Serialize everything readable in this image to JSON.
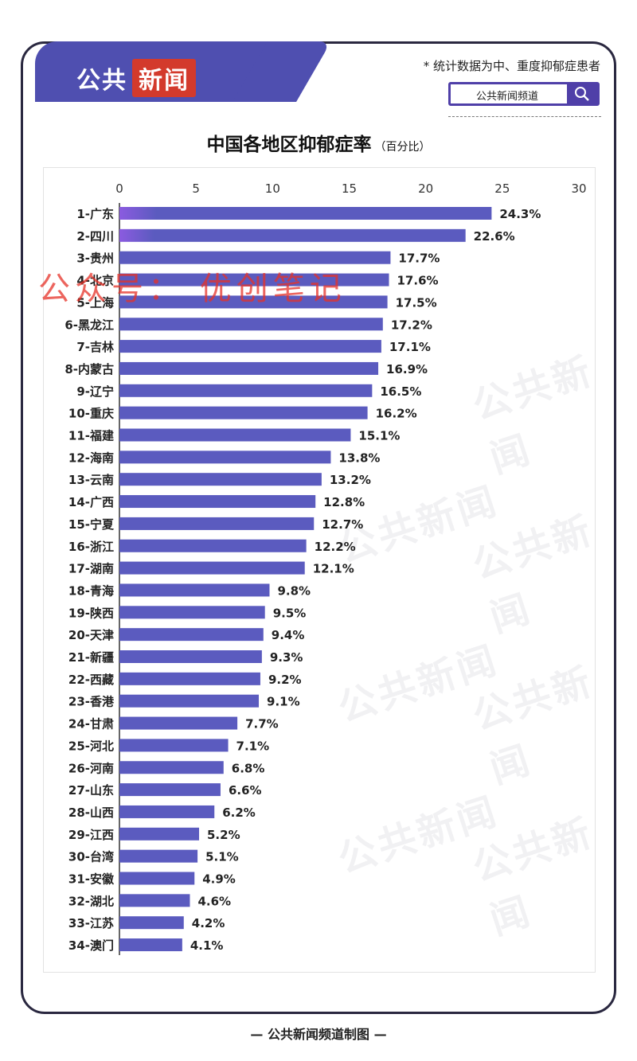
{
  "header": {
    "logo_part1": "公共",
    "logo_part2": "新闻",
    "note": "* 统计数据为中、重度抑郁症患者",
    "search_text": "公共新闻频道"
  },
  "watermark_text": "公共新闻",
  "overlay_watermark": "公众号： 优创笔记",
  "footer": "— 公共新闻频道制图 —",
  "colors": {
    "bar": "#5b5bbf",
    "bar_top": "#8b5be0",
    "accent": "#4f3fa8",
    "logo_red": "#d33a2c"
  },
  "chart_data": {
    "type": "bar",
    "orientation": "horizontal",
    "title": "中国各地区抑郁症率",
    "unit": "（百分比）",
    "xlim": [
      0,
      30
    ],
    "xticks": [
      "0",
      "5",
      "10",
      "15",
      "20",
      "25",
      "30"
    ],
    "categories": [
      "1-广东",
      "2-四川",
      "3-贵州",
      "4-北京",
      "5-上海",
      "6-黑龙江",
      "7-吉林",
      "8-内蒙古",
      "9-辽宁",
      "10-重庆",
      "11-福建",
      "12-海南",
      "13-云南",
      "14-广西",
      "15-宁夏",
      "16-浙江",
      "17-湖南",
      "18-青海",
      "19-陕西",
      "20-天津",
      "21-新疆",
      "22-西藏",
      "23-香港",
      "24-甘肃",
      "25-河北",
      "26-河南",
      "27-山东",
      "28-山西",
      "29-江西",
      "30-台湾",
      "31-安徽",
      "32-湖北",
      "33-江苏",
      "34-澳门"
    ],
    "values": [
      24.3,
      22.6,
      17.7,
      17.6,
      17.5,
      17.2,
      17.1,
      16.9,
      16.5,
      16.2,
      15.1,
      13.8,
      13.2,
      12.8,
      12.7,
      12.2,
      12.1,
      9.8,
      9.5,
      9.4,
      9.3,
      9.2,
      9.1,
      7.7,
      7.1,
      6.8,
      6.6,
      6.2,
      5.2,
      5.1,
      4.9,
      4.6,
      4.2,
      4.1
    ],
    "labels": [
      "24.3%",
      "22.6%",
      "17.7%",
      "17.6%",
      "17.5%",
      "17.2%",
      "17.1%",
      "16.9%",
      "16.5%",
      "16.2%",
      "15.1%",
      "13.8%",
      "13.2%",
      "12.8%",
      "12.7%",
      "12.2%",
      "12.1%",
      "9.8%",
      "9.5%",
      "9.4%",
      "9.3%",
      "9.2%",
      "9.1%",
      "7.7%",
      "7.1%",
      "6.8%",
      "6.6%",
      "6.2%",
      "5.2%",
      "5.1%",
      "4.9%",
      "4.6%",
      "4.2%",
      "4.1%"
    ],
    "grid": false
  }
}
